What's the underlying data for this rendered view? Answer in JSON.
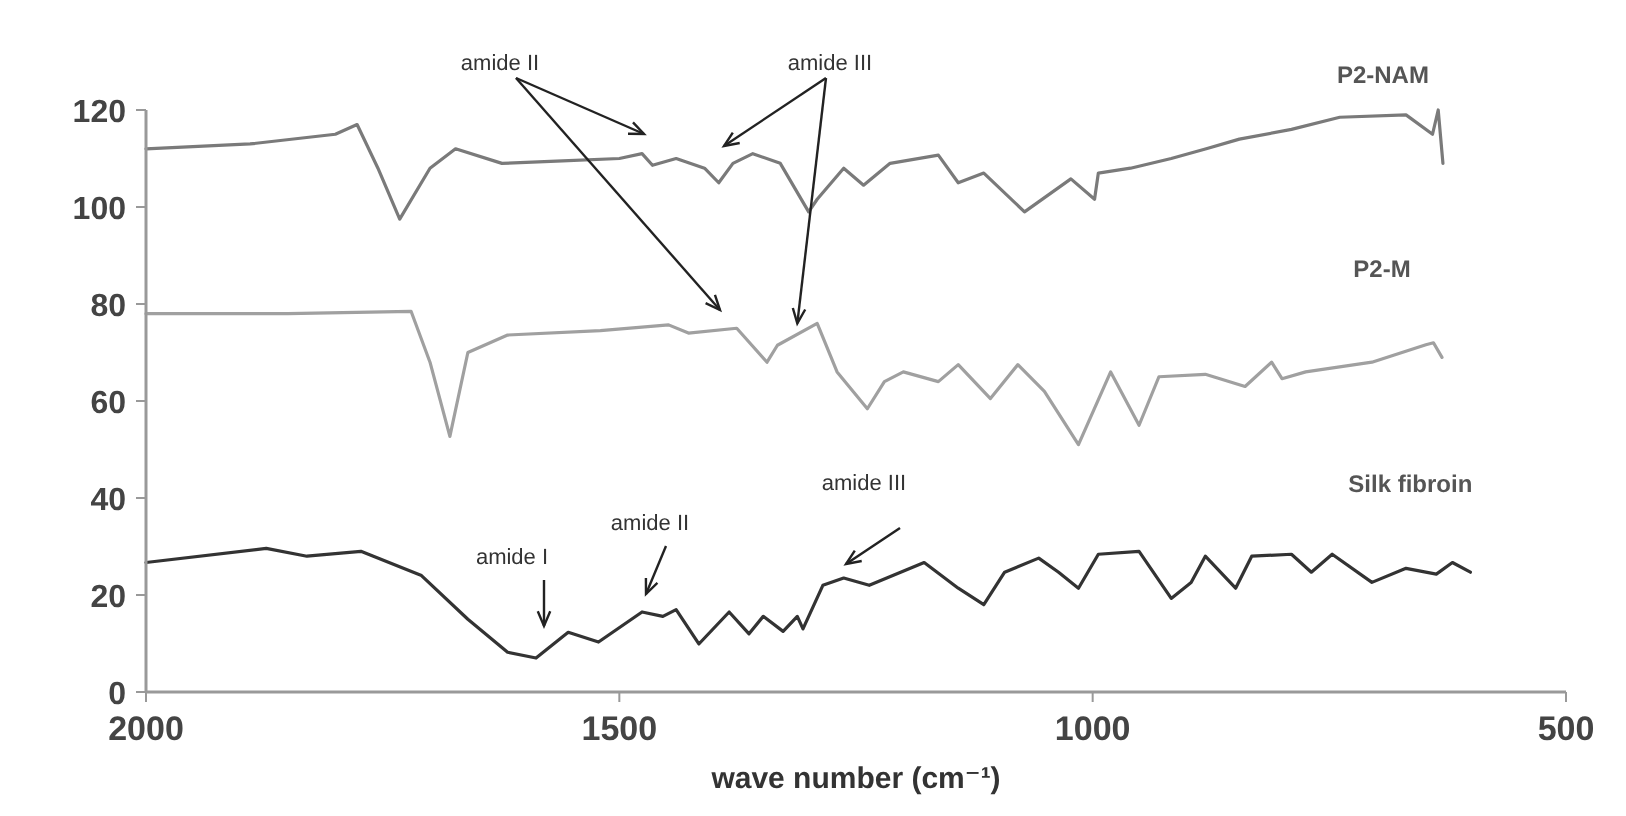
{
  "chart_data": {
    "type": "line",
    "xlabel": "wave number (cm⁻¹)",
    "xlim": [
      2000,
      500
    ],
    "xticks": [
      2000,
      1500,
      1000,
      500
    ],
    "ylim": [
      0,
      120
    ],
    "yticks": [
      0,
      20,
      40,
      60,
      80,
      100,
      120
    ],
    "grid": false,
    "marker": "none",
    "line_style": "solid",
    "series": [
      {
        "name": "P2-NAM",
        "color": "#7a7a7a",
        "x": [
          2000,
          1890,
          1800,
          1777,
          1755,
          1732,
          1700,
          1673,
          1624,
          1560,
          1500,
          1476,
          1465,
          1440,
          1410,
          1395,
          1380,
          1359,
          1330,
          1300,
          1291,
          1263,
          1242,
          1214,
          1163,
          1142,
          1115,
          1072,
          1023,
          998,
          994,
          960,
          917,
          880,
          845,
          790,
          739,
          669,
          641,
          635,
          630
        ],
        "values": [
          112,
          113,
          115,
          117,
          108,
          97.5,
          108,
          112,
          109,
          109.5,
          110,
          111,
          108.6,
          110,
          108,
          105,
          109,
          111,
          109,
          99,
          101.6,
          108,
          104.5,
          109,
          110.7,
          105,
          107,
          99,
          105.8,
          101.6,
          107,
          108,
          110,
          112,
          114,
          116,
          118.5,
          119,
          115,
          120,
          109
        ]
      },
      {
        "name": "P2-M",
        "color": "#a0a0a0",
        "x": [
          2000,
          1850,
          1720,
          1700,
          1679,
          1660,
          1618,
          1520,
          1448,
          1427,
          1376,
          1344,
          1333,
          1291,
          1270,
          1238,
          1220,
          1200,
          1163,
          1142,
          1108,
          1079,
          1051,
          1015,
          981,
          951,
          930,
          881,
          839,
          811,
          800,
          775,
          705,
          648,
          640,
          631
        ],
        "values": [
          78,
          78,
          78.5,
          68,
          52.7,
          70,
          73.6,
          74.5,
          75.7,
          74,
          75,
          68,
          71.5,
          76,
          66,
          58.4,
          64,
          66,
          64,
          67.5,
          60.5,
          67.5,
          62,
          51,
          66,
          55,
          65,
          65.5,
          63,
          68,
          64.6,
          66,
          68,
          71.6,
          72,
          69
        ]
      },
      {
        "name": "Silk fibroin",
        "color": "#333333",
        "x": [
          2000,
          1873,
          1830,
          1773,
          1709,
          1660,
          1618,
          1588,
          1554,
          1522,
          1476,
          1454,
          1440,
          1416,
          1384,
          1363,
          1348,
          1327,
          1312,
          1306,
          1285,
          1263,
          1236,
          1178,
          1142,
          1115,
          1093,
          1057,
          1036,
          1015,
          994,
          951,
          917,
          896,
          881,
          849,
          832,
          790,
          769,
          747,
          705,
          669,
          637,
          620,
          601
        ],
        "values": [
          26.7,
          29.6,
          28,
          29,
          24,
          15,
          8.2,
          7,
          12.3,
          10.3,
          16.5,
          15.6,
          17,
          9.9,
          16.5,
          12,
          15.6,
          12.5,
          15.6,
          13,
          22,
          23.5,
          22,
          26.7,
          21.4,
          18,
          24.7,
          27.6,
          24.7,
          21.4,
          28.4,
          29,
          19.3,
          22.6,
          28,
          21.4,
          28,
          28.4,
          24.7,
          28.4,
          22.6,
          25.5,
          24.3,
          26.7,
          24.7
        ]
      }
    ],
    "annotations": [
      "amide II",
      {
        "text": "amide III",
        "x": 1312,
        "y": 76
      },
      "amide I",
      "amide II",
      "amide III"
    ]
  }
}
